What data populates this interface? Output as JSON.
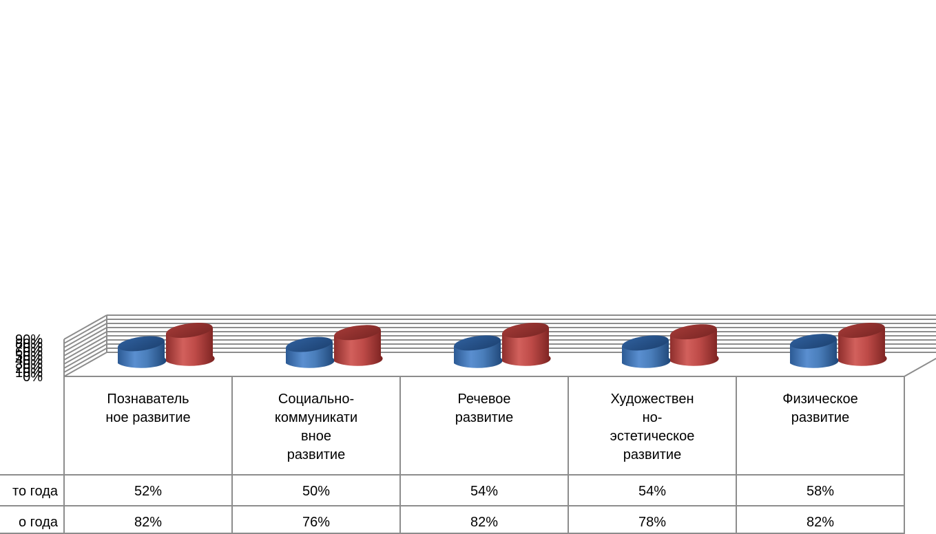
{
  "chart_data": {
    "type": "bar",
    "style": "3d-cylinder",
    "grid": true,
    "ylim": [
      0,
      90
    ],
    "yticks": [
      "0%",
      "10%",
      "20%",
      "30%",
      "40%",
      "50%",
      "60%",
      "70%",
      "80%",
      "90%"
    ],
    "categories": [
      [
        "Познаватель",
        "ное развитие"
      ],
      [
        "Социально-",
        "коммуникати",
        "вное",
        "развитие"
      ],
      [
        "Речевое",
        "развитие"
      ],
      [
        "Художествен",
        "но-",
        "эстетическое",
        "развитие"
      ],
      [
        "Физическое",
        "развитие"
      ]
    ],
    "series": [
      {
        "row_label": "то года",
        "color": "#4a7ebb",
        "values": [
          52,
          50,
          54,
          54,
          58
        ],
        "labels": [
          "52%",
          "50%",
          "54%",
          "54%",
          "58%"
        ]
      },
      {
        "row_label": "о года",
        "color": "#be4b48",
        "values": [
          82,
          76,
          82,
          78,
          82
        ],
        "labels": [
          "82%",
          "76%",
          "82%",
          "78%",
          "82%"
        ]
      }
    ]
  }
}
